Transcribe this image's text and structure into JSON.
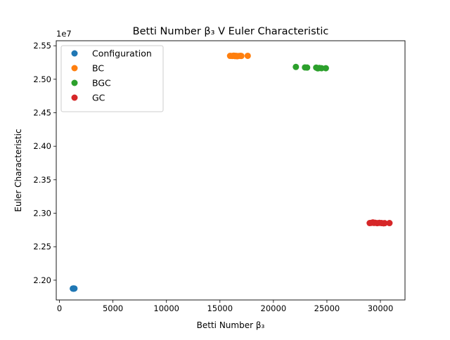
{
  "chart_data": {
    "type": "scatter",
    "title": "Betti Number β₃ V Euler Characteristic",
    "xlabel": "Betti Number β₃",
    "ylabel": "Euler Characteristic",
    "y_offset_label": "1e7",
    "xlim": [
      -300,
      32300
    ],
    "ylim": [
      2.1705,
      2.5575
    ],
    "x_ticks": [
      0,
      5000,
      10000,
      15000,
      20000,
      25000,
      30000
    ],
    "x_tick_labels": [
      "0",
      "5000",
      "10000",
      "15000",
      "20000",
      "25000",
      "30000"
    ],
    "y_ticks": [
      2.2,
      2.25,
      2.3,
      2.35,
      2.4,
      2.45,
      2.5,
      2.55
    ],
    "y_tick_labels": [
      "2.20",
      "2.25",
      "2.30",
      "2.35",
      "2.40",
      "2.45",
      "2.50",
      "2.55"
    ],
    "grid": false,
    "legend_position": "top-left",
    "series": [
      {
        "name": "Configuration",
        "color": "#1f77b4",
        "x": [
          1250,
          1300,
          1320,
          1350,
          1400
        ],
        "y": [
          2.1875,
          2.1876,
          2.1874,
          2.1875,
          2.1876
        ]
      },
      {
        "name": "BC",
        "color": "#ff7f0e",
        "x": [
          15950,
          16150,
          16300,
          16400,
          16500,
          16600,
          16700,
          16900,
          17000,
          17600
        ],
        "y": [
          2.5349,
          2.5348,
          2.5352,
          2.5346,
          2.535,
          2.5344,
          2.5347,
          2.5349,
          2.5348,
          2.535
        ]
      },
      {
        "name": "BGC",
        "color": "#2ca02c",
        "x": [
          22100,
          22950,
          23150,
          24000,
          24150,
          24300,
          24500,
          24900
        ],
        "y": [
          2.5184,
          2.5177,
          2.5175,
          2.5174,
          2.5163,
          2.5168,
          2.5165,
          2.5165
        ]
      },
      {
        "name": "GC",
        "color": "#d62728",
        "x": [
          29000,
          29150,
          29300,
          29400,
          29500,
          29700,
          29900,
          30100,
          30300,
          30400,
          30850
        ],
        "y": [
          2.2853,
          2.2856,
          2.2862,
          2.2855,
          2.2858,
          2.2852,
          2.2856,
          2.2853,
          2.285,
          2.2852,
          2.2853
        ]
      }
    ]
  }
}
